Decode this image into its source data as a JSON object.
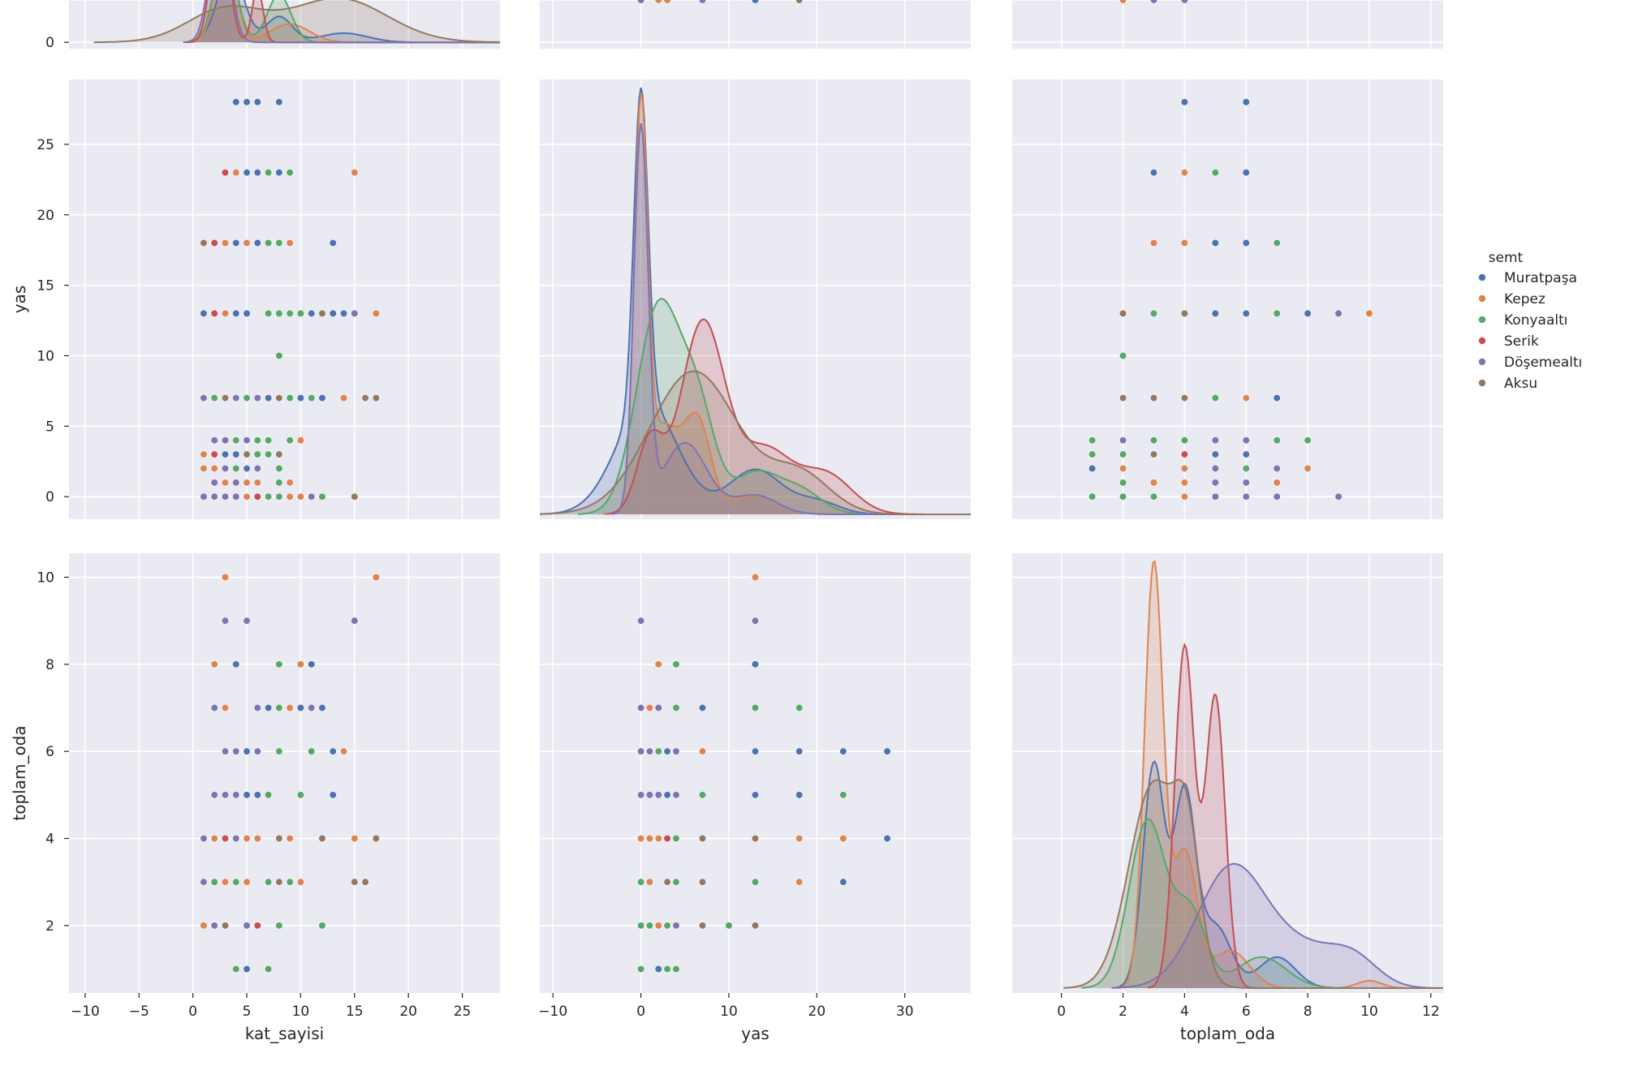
{
  "chart_data": {
    "type": "scatter",
    "subtype": "pairplot",
    "variables": [
      "kat_sayisi",
      "yas",
      "toplam_oda"
    ],
    "axis_labels": {
      "x": [
        "kat_sayisi",
        "yas",
        "toplam_oda"
      ],
      "y": [
        "",
        "yas",
        "toplam_oda"
      ]
    },
    "ranges": {
      "kat_sayisi": [
        -11.5,
        28.5
      ],
      "yas": [
        -11.5,
        37.5
      ],
      "toplam_oda": [
        -1.6,
        12.4
      ]
    },
    "row_ranges": {
      "yas": [
        -1.6,
        29.6
      ],
      "toplam_oda": [
        0.45,
        10.55
      ]
    },
    "ticks": {
      "kat_sayisi": [
        -10,
        -5,
        0,
        5,
        10,
        15,
        20,
        25
      ],
      "yas": [
        -10,
        0,
        10,
        20,
        30
      ],
      "toplam_oda": [
        0,
        2,
        4,
        6,
        8,
        10,
        12
      ]
    },
    "row_ticks": {
      "kat_sayisi": [
        0,
        2
      ],
      "yas": [
        0,
        5,
        10,
        15,
        20,
        25
      ],
      "toplam_oda": [
        2,
        4,
        6,
        8,
        10
      ]
    },
    "grid": true,
    "background": "#eaeaf2",
    "legend": {
      "title": "semt",
      "placement": "right",
      "entries": [
        "Muratpaşa",
        "Kepez",
        "Konyaaltı",
        "Serik",
        "Döşemealtı",
        "Aksu"
      ]
    },
    "hue_colors": [
      "#4c72b0",
      "#dd8452",
      "#55a868",
      "#c44e52",
      "#8172b3",
      "#937860"
    ],
    "points": [
      [
        4,
        28,
        6,
        0
      ],
      [
        5,
        28,
        4,
        0
      ],
      [
        6,
        28,
        6,
        0
      ],
      [
        8,
        28,
        4,
        0
      ],
      [
        3,
        23,
        4,
        3
      ],
      [
        4,
        23,
        3,
        1
      ],
      [
        5,
        23,
        6,
        0
      ],
      [
        6,
        23,
        5,
        0
      ],
      [
        7,
        23,
        5,
        2
      ],
      [
        8,
        23,
        3,
        0
      ],
      [
        9,
        23,
        4,
        2
      ],
      [
        15,
        23,
        4,
        1
      ],
      [
        1,
        18,
        3,
        5
      ],
      [
        2,
        18,
        4,
        3
      ],
      [
        3,
        18,
        3,
        1
      ],
      [
        4,
        18,
        5,
        0
      ],
      [
        5,
        18,
        4,
        1
      ],
      [
        6,
        18,
        6,
        0
      ],
      [
        7,
        18,
        7,
        2
      ],
      [
        8,
        18,
        7,
        2
      ],
      [
        9,
        18,
        4,
        1
      ],
      [
        13,
        18,
        6,
        0
      ],
      [
        1,
        13,
        4,
        0
      ],
      [
        2,
        13,
        3,
        3
      ],
      [
        3,
        13,
        2,
        5
      ],
      [
        4,
        13,
        3,
        2
      ],
      [
        5,
        13,
        5,
        0
      ],
      [
        7,
        13,
        7,
        2
      ],
      [
        8,
        13,
        6,
        2
      ],
      [
        9,
        13,
        3,
        2
      ],
      [
        10,
        13,
        7,
        2
      ],
      [
        11,
        13,
        8,
        1
      ],
      [
        12,
        13,
        4,
        5
      ],
      [
        13,
        13,
        5,
        0
      ],
      [
        14,
        13,
        6,
        0
      ],
      [
        15,
        13,
        9,
        4
      ],
      [
        17,
        13,
        10,
        1
      ],
      [
        11,
        13,
        8,
        0
      ],
      [
        8,
        10,
        2,
        2
      ],
      [
        1,
        7,
        4,
        4
      ],
      [
        2,
        7,
        3,
        2
      ],
      [
        3,
        7,
        2,
        5
      ],
      [
        4,
        7,
        5,
        4
      ],
      [
        5,
        7,
        3,
        2
      ],
      [
        6,
        7,
        6,
        4
      ],
      [
        7,
        7,
        7,
        0
      ],
      [
        8,
        7,
        4,
        5
      ],
      [
        9,
        7,
        7,
        2
      ],
      [
        10,
        7,
        5,
        2
      ],
      [
        11,
        7,
        6,
        2
      ],
      [
        12,
        7,
        7,
        0
      ],
      [
        14,
        7,
        6,
        1
      ],
      [
        16,
        7,
        3,
        5
      ],
      [
        17,
        7,
        4,
        5
      ],
      [
        2,
        4,
        5,
        4
      ],
      [
        3,
        4,
        6,
        4
      ],
      [
        4,
        4,
        1,
        2
      ],
      [
        5,
        4,
        2,
        4
      ],
      [
        6,
        4,
        4,
        2
      ],
      [
        7,
        4,
        3,
        2
      ],
      [
        9,
        4,
        7,
        2
      ],
      [
        10,
        4,
        8,
        1
      ],
      [
        1,
        3,
        3,
        1
      ],
      [
        2,
        3,
        4,
        3
      ],
      [
        3,
        3,
        5,
        0
      ],
      [
        4,
        3,
        6,
        0
      ],
      [
        5,
        3,
        3,
        5
      ],
      [
        6,
        3,
        2,
        2
      ],
      [
        7,
        3,
        1,
        2
      ],
      [
        8,
        3,
        3,
        5
      ],
      [
        1,
        2,
        2,
        1
      ],
      [
        2,
        2,
        4,
        1
      ],
      [
        3,
        2,
        5,
        4
      ],
      [
        4,
        2,
        6,
        2
      ],
      [
        5,
        2,
        1,
        0
      ],
      [
        6,
        2,
        7,
        4
      ],
      [
        8,
        2,
        8,
        2
      ],
      [
        2,
        1,
        2,
        4
      ],
      [
        3,
        1,
        5,
        4
      ],
      [
        4,
        1,
        6,
        4
      ],
      [
        5,
        1,
        3,
        1
      ],
      [
        6,
        1,
        4,
        1
      ],
      [
        8,
        1,
        2,
        2
      ],
      [
        9,
        1,
        7,
        1
      ],
      [
        1,
        0,
        3,
        4
      ],
      [
        2,
        0,
        5,
        4
      ],
      [
        3,
        0,
        6,
        4
      ],
      [
        4,
        0,
        4,
        4
      ],
      [
        5,
        0,
        9,
        4
      ],
      [
        6,
        0,
        2,
        3
      ],
      [
        7,
        0,
        1,
        2
      ],
      [
        8,
        0,
        2,
        2
      ],
      [
        9,
        0,
        4,
        1
      ],
      [
        10,
        0,
        3,
        1
      ],
      [
        11,
        0,
        7,
        4
      ],
      [
        12,
        0,
        2,
        2
      ],
      [
        15,
        0,
        3,
        5
      ],
      [
        5,
        0,
        4,
        1
      ],
      [
        7,
        0,
        3,
        2
      ],
      [
        2,
        0,
        7,
        5
      ],
      [
        3,
        13,
        10,
        1
      ],
      [
        3,
        0,
        9,
        4
      ],
      [
        2,
        2,
        8,
        1
      ],
      [
        4,
        4,
        8,
        2
      ],
      [
        2,
        0,
        7,
        4
      ],
      [
        3,
        1,
        7,
        1
      ],
      [
        10,
        7,
        7,
        0
      ],
      [
        4,
        13,
        8,
        0
      ]
    ],
    "kde": {
      "kat_sayisi": [
        {
          "hue": 0,
          "peaks": [
            [
              3.5,
              2.0,
              1.2
            ],
            [
              8,
              0.7,
              1.2
            ],
            [
              14,
              0.25,
              2.2
            ]
          ]
        },
        {
          "hue": 1,
          "peaks": [
            [
              3,
              2.8,
              0.9
            ],
            [
              9,
              0.5,
              1.8
            ]
          ]
        },
        {
          "hue": 2,
          "peaks": [
            [
              3,
              2.5,
              1.0
            ],
            [
              8,
              1.3,
              1.1
            ]
          ]
        },
        {
          "hue": 3,
          "peaks": [
            [
              2.5,
              3.5,
              0.8
            ],
            [
              6,
              1.5,
              0.5
            ]
          ]
        },
        {
          "hue": 4,
          "peaks": [
            [
              2.5,
              3.6,
              0.9
            ]
          ]
        },
        {
          "hue": 5,
          "peaks": [
            [
              3,
              0.9,
              3.5
            ],
            [
              13.5,
              1.2,
              4.5
            ]
          ]
        }
      ],
      "yas": [
        {
          "hue": 0,
          "peaks": [
            [
              0,
              20,
              0.8
            ],
            [
              0.7,
              7,
              3.5
            ],
            [
              13,
              2.8,
              3.0
            ],
            [
              20,
              0.8,
              2.5
            ]
          ]
        },
        {
          "hue": 1,
          "peaks": [
            [
              0,
              24,
              0.75
            ],
            [
              2.5,
              5.5,
              2.0
            ],
            [
              6.5,
              5.5,
              1.5
            ],
            [
              13,
              1.2,
              2.5
            ]
          ]
        },
        {
          "hue": 2,
          "peaks": [
            [
              2,
              13,
              2.5
            ],
            [
              6.5,
              6,
              2.0
            ],
            [
              13,
              2.5,
              2.5
            ],
            [
              18,
              1.5,
              2.5
            ]
          ]
        },
        {
          "hue": 3,
          "peaks": [
            [
              1,
              4.5,
              1.5
            ],
            [
              7,
              12,
              2.5
            ],
            [
              14,
              4,
              3.0
            ],
            [
              21,
              2.5,
              3.0
            ]
          ]
        },
        {
          "hue": 4,
          "peaks": [
            [
              0,
              24,
              0.8
            ],
            [
              5,
              4.5,
              2.5
            ],
            [
              13,
              1.2,
              2.5
            ]
          ]
        },
        {
          "hue": 5,
          "peaks": [
            [
              6,
              9,
              5.0
            ],
            [
              18,
              2.5,
              3.5
            ]
          ]
        }
      ],
      "toplam_oda": [
        {
          "hue": 0,
          "peaks": [
            [
              3,
              0.36,
              0.35
            ],
            [
              4,
              0.31,
              0.35
            ],
            [
              5,
              0.1,
              0.5
            ],
            [
              7,
              0.05,
              0.6
            ]
          ]
        },
        {
          "hue": 1,
          "peaks": [
            [
              3,
              0.68,
              0.3
            ],
            [
              4,
              0.22,
              0.4
            ],
            [
              5.5,
              0.06,
              0.6
            ],
            [
              10,
              0.012,
              0.4
            ]
          ]
        },
        {
          "hue": 2,
          "peaks": [
            [
              2.8,
              0.27,
              0.6
            ],
            [
              4.2,
              0.12,
              0.5
            ],
            [
              6.5,
              0.05,
              0.8
            ]
          ]
        },
        {
          "hue": 3,
          "peaks": [
            [
              4,
              0.55,
              0.32
            ],
            [
              5,
              0.47,
              0.32
            ]
          ]
        },
        {
          "hue": 4,
          "peaks": [
            [
              5.5,
              0.19,
              1.1
            ],
            [
              7.8,
              0.06,
              1.2
            ],
            [
              9.5,
              0.04,
              0.8
            ]
          ]
        },
        {
          "hue": 5,
          "peaks": [
            [
              3,
              0.33,
              0.8
            ],
            [
              4.1,
              0.18,
              0.4
            ]
          ]
        }
      ]
    }
  }
}
